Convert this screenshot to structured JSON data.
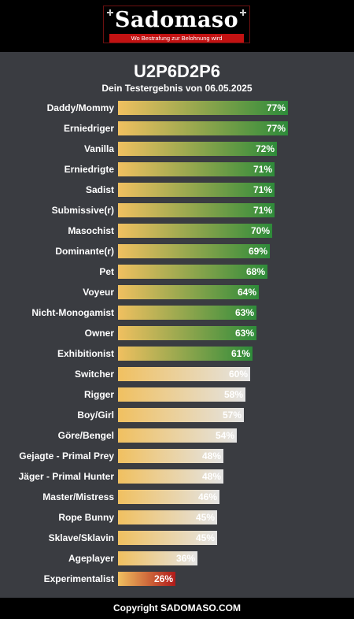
{
  "header": {
    "logo_text": "Sadomaso",
    "logo_tagline": "Wo Bestrafung zur Belohnung wird"
  },
  "result": {
    "title": "U2P6D2P6",
    "subtitle": "Dein Testergebnis von 06.05.2025"
  },
  "colors": {
    "bar_start": "#f0c060",
    "high": "#2e8b3a",
    "mid": "#e4e4e4",
    "low": "#b01a1a"
  },
  "results": [
    {
      "label": "Daddy/Mommy",
      "value": 77,
      "display": "77%",
      "tier": "high"
    },
    {
      "label": "Erniedriger",
      "value": 77,
      "display": "77%",
      "tier": "high"
    },
    {
      "label": "Vanilla",
      "value": 72,
      "display": "72%",
      "tier": "high"
    },
    {
      "label": "Erniedrigte",
      "value": 71,
      "display": "71%",
      "tier": "high"
    },
    {
      "label": "Sadist",
      "value": 71,
      "display": "71%",
      "tier": "high"
    },
    {
      "label": "Submissive(r)",
      "value": 71,
      "display": "71%",
      "tier": "high"
    },
    {
      "label": "Masochist",
      "value": 70,
      "display": "70%",
      "tier": "high"
    },
    {
      "label": "Dominante(r)",
      "value": 69,
      "display": "69%",
      "tier": "high"
    },
    {
      "label": "Pet",
      "value": 68,
      "display": "68%",
      "tier": "high"
    },
    {
      "label": "Voyeur",
      "value": 64,
      "display": "64%",
      "tier": "high"
    },
    {
      "label": "Nicht-Monogamist",
      "value": 63,
      "display": "63%",
      "tier": "high"
    },
    {
      "label": "Owner",
      "value": 63,
      "display": "63%",
      "tier": "high"
    },
    {
      "label": "Exhibitionist",
      "value": 61,
      "display": "61%",
      "tier": "high"
    },
    {
      "label": "Switcher",
      "value": 60,
      "display": "60%",
      "tier": "mid"
    },
    {
      "label": "Rigger",
      "value": 58,
      "display": "58%",
      "tier": "mid"
    },
    {
      "label": "Boy/Girl",
      "value": 57,
      "display": "57%",
      "tier": "mid"
    },
    {
      "label": "Göre/Bengel",
      "value": 54,
      "display": "54%",
      "tier": "mid"
    },
    {
      "label": "Gejagte - Primal Prey",
      "value": 48,
      "display": "48%",
      "tier": "mid"
    },
    {
      "label": "Jäger - Primal Hunter",
      "value": 48,
      "display": "48%",
      "tier": "mid"
    },
    {
      "label": "Master/Mistress",
      "value": 46,
      "display": "46%",
      "tier": "mid"
    },
    {
      "label": "Rope Bunny",
      "value": 45,
      "display": "45%",
      "tier": "mid"
    },
    {
      "label": "Sklave/Sklavin",
      "value": 45,
      "display": "45%",
      "tier": "mid"
    },
    {
      "label": "Ageplayer",
      "value": 36,
      "display": "36%",
      "tier": "mid"
    },
    {
      "label": "Experimentalist",
      "value": 26,
      "display": "26%",
      "tier": "low"
    }
  ],
  "footer": {
    "copyright": "Copyright SADOMASO.COM"
  }
}
